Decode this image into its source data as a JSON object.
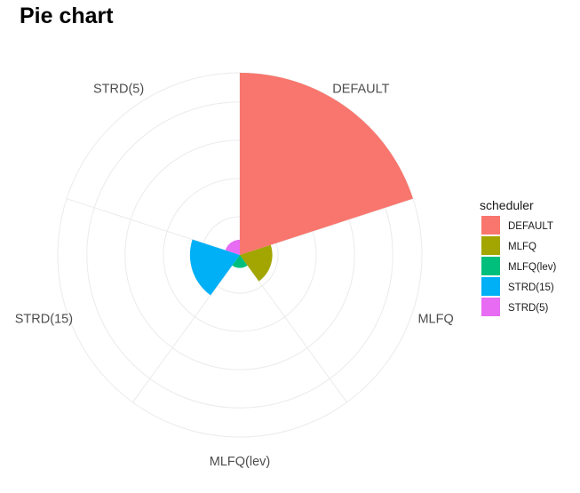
{
  "chart_data": {
    "type": "pie",
    "subtype": "coxcomb (polar bar)",
    "title": "Pie chart",
    "categories": [
      "DEFAULT",
      "MLFQ",
      "MLFQ(lev)",
      "STRD(15)",
      "STRD(5)"
    ],
    "values": [
      4.2,
      0.75,
      0.3,
      1.15,
      0.35
    ],
    "radial_range": [
      0,
      4.2
    ],
    "colors": [
      "#F8766D",
      "#A3A500",
      "#00BF7D",
      "#00B0F6",
      "#E76BF3"
    ],
    "grid": true,
    "legend": {
      "title": "scheduler",
      "position": "right",
      "entries": [
        "DEFAULT",
        "MLFQ",
        "MLFQ(lev)",
        "STRD(15)",
        "STRD(5)"
      ]
    }
  }
}
